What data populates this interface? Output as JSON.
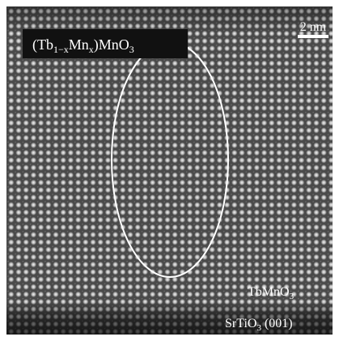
{
  "label": {
    "parts": [
      "(Tb",
      "1−x",
      "Mn",
      "x",
      ")MnO",
      "3"
    ]
  },
  "scale_bar": "2 nm",
  "film": [
    "TbMnO",
    "3"
  ],
  "substrate": [
    "SrTiO",
    "3",
    " (001)"
  ]
}
